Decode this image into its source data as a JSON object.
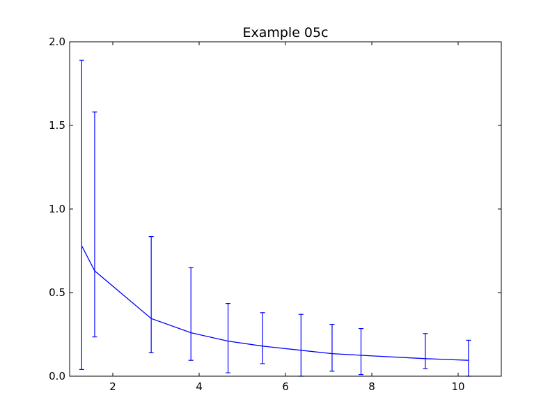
{
  "chart_data": {
    "type": "line",
    "title": "Example 05c",
    "xlabel": "",
    "ylabel": "",
    "xlim": [
      1,
      11
    ],
    "ylim": [
      0,
      2
    ],
    "grid": false,
    "xticks": [
      2,
      4,
      6,
      8,
      10
    ],
    "yticks": [
      0.0,
      0.5,
      1.0,
      1.5,
      2.0
    ],
    "xtick_labels": [
      "2",
      "4",
      "6",
      "8",
      "10"
    ],
    "ytick_labels": [
      "0.0",
      "0.5",
      "1.0",
      "1.5",
      "2.0"
    ],
    "color": "#0000ff",
    "series": [
      {
        "x": [
          1.28,
          1.58,
          2.89,
          3.81,
          4.67,
          5.47,
          6.36,
          7.08,
          7.75,
          9.24,
          10.24
        ],
        "y": [
          0.78,
          0.63,
          0.345,
          0.26,
          0.21,
          0.18,
          0.155,
          0.135,
          0.125,
          0.105,
          0.095
        ],
        "yerr_low": [
          0.04,
          0.235,
          0.14,
          0.095,
          0.02,
          0.075,
          0.0,
          0.03,
          0.01,
          0.045,
          0.0
        ],
        "yerr_high": [
          1.89,
          1.58,
          0.835,
          0.65,
          0.435,
          0.38,
          0.37,
          0.31,
          0.285,
          0.255,
          0.215
        ]
      }
    ]
  }
}
